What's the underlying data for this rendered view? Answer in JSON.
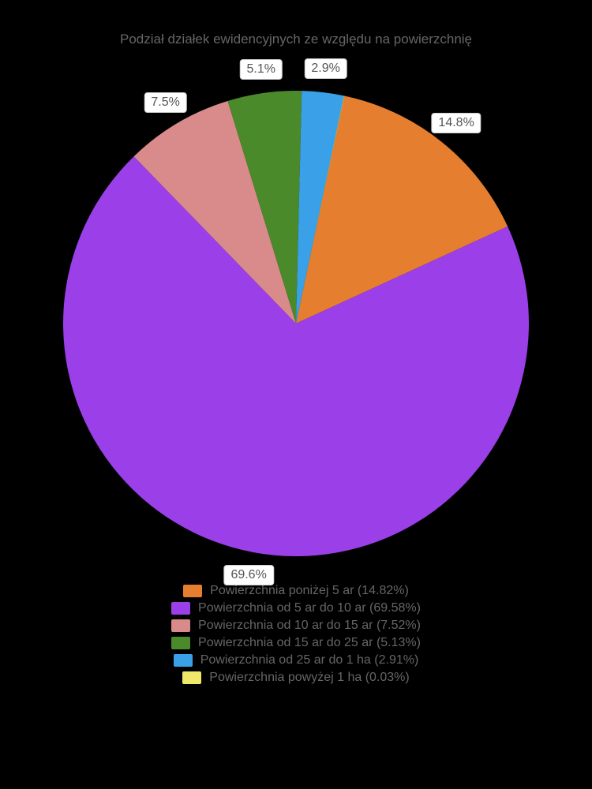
{
  "chart": {
    "type": "pie",
    "title": "Podział działek ewidencyjnych ze względu na powierzchnię",
    "title_fontsize": 17,
    "title_color": "#666666",
    "background_color": "#000000",
    "pie_radius": 295,
    "start_angle_deg": 12,
    "label_box_bg": "#ffffff",
    "label_box_border": "#cccccc",
    "label_text_color": "#555555",
    "label_fontsize": 16,
    "legend_text_color": "#666666",
    "legend_fontsize": 16,
    "slices": [
      {
        "label": "Powierzchnia poniżej 5 ar (14.82%)",
        "value": 14.82,
        "short": "14.8%",
        "color": "#e67e30",
        "show_label": true
      },
      {
        "label": "Powierzchnia od 5 ar do 10 ar (69.58%)",
        "value": 69.58,
        "short": "69.6%",
        "color": "#9b3fe8",
        "show_label": true
      },
      {
        "label": "Powierzchnia od 10 ar do 15 ar (7.52%)",
        "value": 7.52,
        "short": "7.5%",
        "color": "#d98b8b",
        "show_label": true
      },
      {
        "label": "Powierzchnia od 15 ar do 25 ar (5.13%)",
        "value": 5.13,
        "short": "5.1%",
        "color": "#4a8a2a",
        "show_label": true
      },
      {
        "label": "Powierzchnia od 25 ar do 1 ha (2.91%)",
        "value": 2.91,
        "short": "2.9%",
        "color": "#3aa0e8",
        "show_label": true
      },
      {
        "label": "Powierzchnia powyżej 1 ha (0.03%)",
        "value": 0.03,
        "short": "0.03%",
        "color": "#f0e868",
        "show_label": false
      }
    ]
  }
}
